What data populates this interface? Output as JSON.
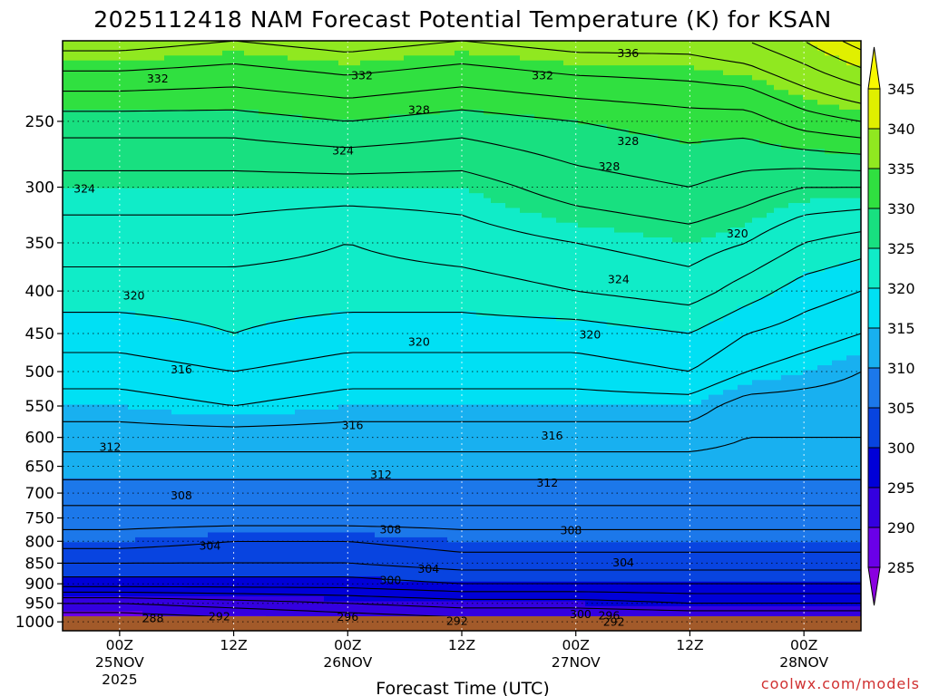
{
  "chart_data": {
    "type": "heatmap",
    "title": "2025112418 NAM Forecast Potential Temperature (K) for KSAN",
    "xlabel": "Forecast Time (UTC)",
    "ylabel": "",
    "credit": "coolwx.com/models",
    "x_ticks": [
      {
        "hours": 6,
        "line1": "00Z",
        "line2": "25NOV",
        "line3": "2025"
      },
      {
        "hours": 18,
        "line1": "12Z",
        "line2": "",
        "line3": ""
      },
      {
        "hours": 30,
        "line1": "00Z",
        "line2": "26NOV",
        "line3": ""
      },
      {
        "hours": 42,
        "line1": "12Z",
        "line2": "",
        "line3": ""
      },
      {
        "hours": 54,
        "line1": "00Z",
        "line2": "27NOV",
        "line3": ""
      },
      {
        "hours": 66,
        "line1": "12Z",
        "line2": "",
        "line3": ""
      },
      {
        "hours": 78,
        "line1": "00Z",
        "line2": "28NOV",
        "line3": ""
      }
    ],
    "xlim_hours": [
      0,
      84
    ],
    "y_axis": {
      "scale": "log-pressure",
      "ylim_hPa": [
        1025,
        200
      ],
      "inverted": true,
      "unit": "hPa"
    },
    "y_ticks": [
      250,
      300,
      350,
      400,
      450,
      500,
      550,
      600,
      650,
      700,
      750,
      800,
      850,
      900,
      950,
      1000
    ],
    "grid": true,
    "colorbar": {
      "levels": [
        285,
        290,
        295,
        300,
        305,
        310,
        315,
        320,
        325,
        330,
        335,
        340,
        345
      ],
      "colors": [
        "#8a00e0",
        "#6a00e8",
        "#3400e0",
        "#0000d8",
        "#0844e0",
        "#1c78ea",
        "#18b0f0",
        "#00e0f4",
        "#10ecc8",
        "#18e080",
        "#30e040",
        "#90e820",
        "#e0f000",
        "#f8f800"
      ]
    },
    "theta_profiles_K": {
      "pressure_hPa": [
        1000,
        950,
        900,
        850,
        800,
        750,
        700,
        650,
        600,
        550,
        500,
        450,
        400,
        350,
        300,
        250,
        200
      ],
      "series": [
        {
          "hours": 0,
          "values": [
            288,
            292,
            299,
            302,
            305,
            307,
            309,
            311,
            313,
            315,
            317,
            319,
            321,
            323,
            325,
            329,
            337
          ]
        },
        {
          "hours": 6,
          "values": [
            288,
            292,
            299,
            302,
            305,
            307,
            309,
            311,
            313,
            315,
            317,
            319,
            321,
            323,
            325,
            329,
            337
          ]
        },
        {
          "hours": 18,
          "values": [
            289,
            293,
            299,
            302,
            304,
            307,
            309,
            311,
            313,
            316,
            318,
            320,
            321,
            323,
            325,
            329,
            336
          ]
        },
        {
          "hours": 30,
          "values": [
            290,
            294,
            299,
            302,
            304,
            307,
            309,
            311,
            313,
            315,
            317,
            319,
            321,
            322,
            325,
            330,
            337
          ]
        },
        {
          "hours": 42,
          "values": [
            291,
            295,
            300,
            303,
            305,
            307,
            309,
            311,
            313,
            315,
            317,
            319,
            321,
            323,
            325,
            329,
            336
          ]
        },
        {
          "hours": 54,
          "values": [
            291,
            295,
            300,
            303,
            305,
            307,
            309,
            311,
            313,
            315,
            317,
            319,
            322,
            324,
            327,
            330,
            337
          ]
        },
        {
          "hours": 66,
          "values": [
            291,
            296,
            300,
            303,
            305,
            307,
            309,
            311,
            313,
            315,
            318,
            320,
            323,
            325,
            328,
            331,
            337
          ]
        },
        {
          "hours": 72,
          "values": [
            291,
            296,
            300,
            303,
            305,
            307,
            309,
            311,
            312,
            313,
            316,
            318,
            321,
            324,
            327,
            331,
            338
          ]
        },
        {
          "hours": 78,
          "values": [
            291,
            296,
            300,
            303,
            305,
            307,
            309,
            311,
            312,
            313,
            315,
            317,
            319,
            322,
            326,
            333,
            340
          ]
        },
        {
          "hours": 84,
          "values": [
            291,
            296,
            300,
            303,
            305,
            307,
            309,
            311,
            312,
            313,
            314,
            316,
            318,
            321,
            326,
            334,
            343
          ]
        }
      ]
    },
    "contour_labels": [
      {
        "text": "336",
        "hours": 59.5,
        "p": 207
      },
      {
        "text": "332",
        "hours": 10,
        "p": 222
      },
      {
        "text": "332",
        "hours": 31.5,
        "p": 220
      },
      {
        "text": "332",
        "hours": 50.5,
        "p": 220
      },
      {
        "text": "328",
        "hours": 37.5,
        "p": 242
      },
      {
        "text": "328",
        "hours": 57.5,
        "p": 283
      },
      {
        "text": "328",
        "hours": 59.5,
        "p": 264
      },
      {
        "text": "324",
        "hours": 29.5,
        "p": 271
      },
      {
        "text": "324",
        "hours": 2.3,
        "p": 301
      },
      {
        "text": "324",
        "hours": 58.5,
        "p": 387
      },
      {
        "text": "320",
        "hours": 71,
        "p": 341
      },
      {
        "text": "320",
        "hours": 7.5,
        "p": 405
      },
      {
        "text": "320",
        "hours": 37.5,
        "p": 460
      },
      {
        "text": "320",
        "hours": 55.5,
        "p": 451
      },
      {
        "text": "316",
        "hours": 12.5,
        "p": 497
      },
      {
        "text": "316",
        "hours": 30.5,
        "p": 580
      },
      {
        "text": "316",
        "hours": 51.5,
        "p": 597
      },
      {
        "text": "312",
        "hours": 5,
        "p": 616
      },
      {
        "text": "312",
        "hours": 33.5,
        "p": 665
      },
      {
        "text": "312",
        "hours": 51,
        "p": 680
      },
      {
        "text": "308",
        "hours": 12.5,
        "p": 704
      },
      {
        "text": "308",
        "hours": 34.5,
        "p": 774
      },
      {
        "text": "308",
        "hours": 53.5,
        "p": 776
      },
      {
        "text": "304",
        "hours": 15.5,
        "p": 810
      },
      {
        "text": "304",
        "hours": 38.5,
        "p": 863
      },
      {
        "text": "304",
        "hours": 59,
        "p": 848
      },
      {
        "text": "300",
        "hours": 34.5,
        "p": 891
      },
      {
        "text": "300",
        "hours": 54.5,
        "p": 978
      },
      {
        "text": "296",
        "hours": 30,
        "p": 986
      },
      {
        "text": "296",
        "hours": 57.5,
        "p": 982
      },
      {
        "text": "292",
        "hours": 16.5,
        "p": 985
      },
      {
        "text": "292",
        "hours": 41.5,
        "p": 997
      },
      {
        "text": "292",
        "hours": 58,
        "p": 1000
      },
      {
        "text": "288",
        "hours": 9.5,
        "p": 990
      }
    ]
  }
}
